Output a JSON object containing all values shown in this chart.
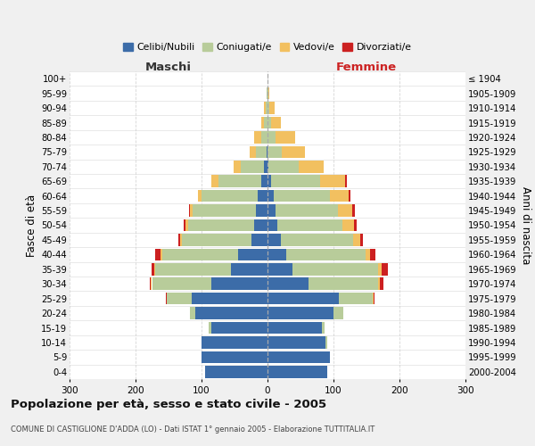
{
  "age_groups_bottom_to_top": [
    "0-4",
    "5-9",
    "10-14",
    "15-19",
    "20-24",
    "25-29",
    "30-34",
    "35-39",
    "40-44",
    "45-49",
    "50-54",
    "55-59",
    "60-64",
    "65-69",
    "70-74",
    "75-79",
    "80-84",
    "85-89",
    "90-94",
    "95-99",
    "100+"
  ],
  "birth_years_bottom_to_top": [
    "2000-2004",
    "1995-1999",
    "1990-1994",
    "1985-1989",
    "1980-1984",
    "1975-1979",
    "1970-1974",
    "1965-1969",
    "1960-1964",
    "1955-1959",
    "1950-1954",
    "1945-1949",
    "1940-1944",
    "1935-1939",
    "1930-1934",
    "1925-1929",
    "1920-1924",
    "1915-1919",
    "1910-1914",
    "1905-1909",
    "≤ 1904"
  ],
  "maschi": {
    "celibi": [
      95,
      100,
      100,
      85,
      110,
      115,
      85,
      55,
      45,
      25,
      20,
      18,
      15,
      10,
      5,
      2,
      0,
      0,
      0,
      0,
      0
    ],
    "coniugati": [
      0,
      0,
      0,
      4,
      8,
      38,
      90,
      115,
      115,
      105,
      100,
      95,
      85,
      65,
      35,
      15,
      10,
      5,
      3,
      1,
      0
    ],
    "vedovi": [
      0,
      0,
      0,
      0,
      0,
      0,
      2,
      2,
      2,
      2,
      5,
      5,
      5,
      10,
      12,
      10,
      10,
      5,
      2,
      1,
      0
    ],
    "divorziati": [
      0,
      0,
      0,
      0,
      0,
      1,
      2,
      3,
      8,
      3,
      2,
      1,
      1,
      0,
      0,
      0,
      0,
      0,
      0,
      0,
      0
    ]
  },
  "femmine": {
    "nubili": [
      90,
      95,
      88,
      82,
      100,
      108,
      62,
      38,
      28,
      20,
      15,
      12,
      10,
      5,
      2,
      0,
      0,
      0,
      0,
      0,
      0
    ],
    "coniugate": [
      0,
      0,
      2,
      4,
      15,
      52,
      105,
      130,
      120,
      110,
      98,
      95,
      85,
      75,
      45,
      22,
      12,
      5,
      3,
      1,
      0
    ],
    "vedove": [
      0,
      0,
      0,
      0,
      0,
      1,
      3,
      5,
      8,
      10,
      18,
      22,
      28,
      38,
      38,
      35,
      30,
      15,
      8,
      2,
      0
    ],
    "divorziate": [
      0,
      0,
      0,
      0,
      0,
      1,
      5,
      10,
      8,
      5,
      4,
      3,
      2,
      2,
      0,
      0,
      0,
      0,
      0,
      0,
      0
    ]
  },
  "colors": {
    "celibi_nubili": "#3c6ca8",
    "coniugati": "#b8cc9a",
    "vedovi": "#f2c060",
    "divorziati": "#cc2020"
  },
  "xlim": 300,
  "title": "Popolazione per età, sesso e stato civile - 2005",
  "subtitle": "COMUNE DI CASTIGLIONE D'ADDA (LO) - Dati ISTAT 1° gennaio 2005 - Elaborazione TUTTITALIA.IT",
  "ylabel_left": "Fasce di età",
  "ylabel_right": "Anni di nascita",
  "legend_labels": [
    "Celibi/Nubili",
    "Coniugati/e",
    "Vedovi/e",
    "Divorziati/e"
  ],
  "bg_color": "#f0f0f0",
  "plot_bg": "#ffffff"
}
